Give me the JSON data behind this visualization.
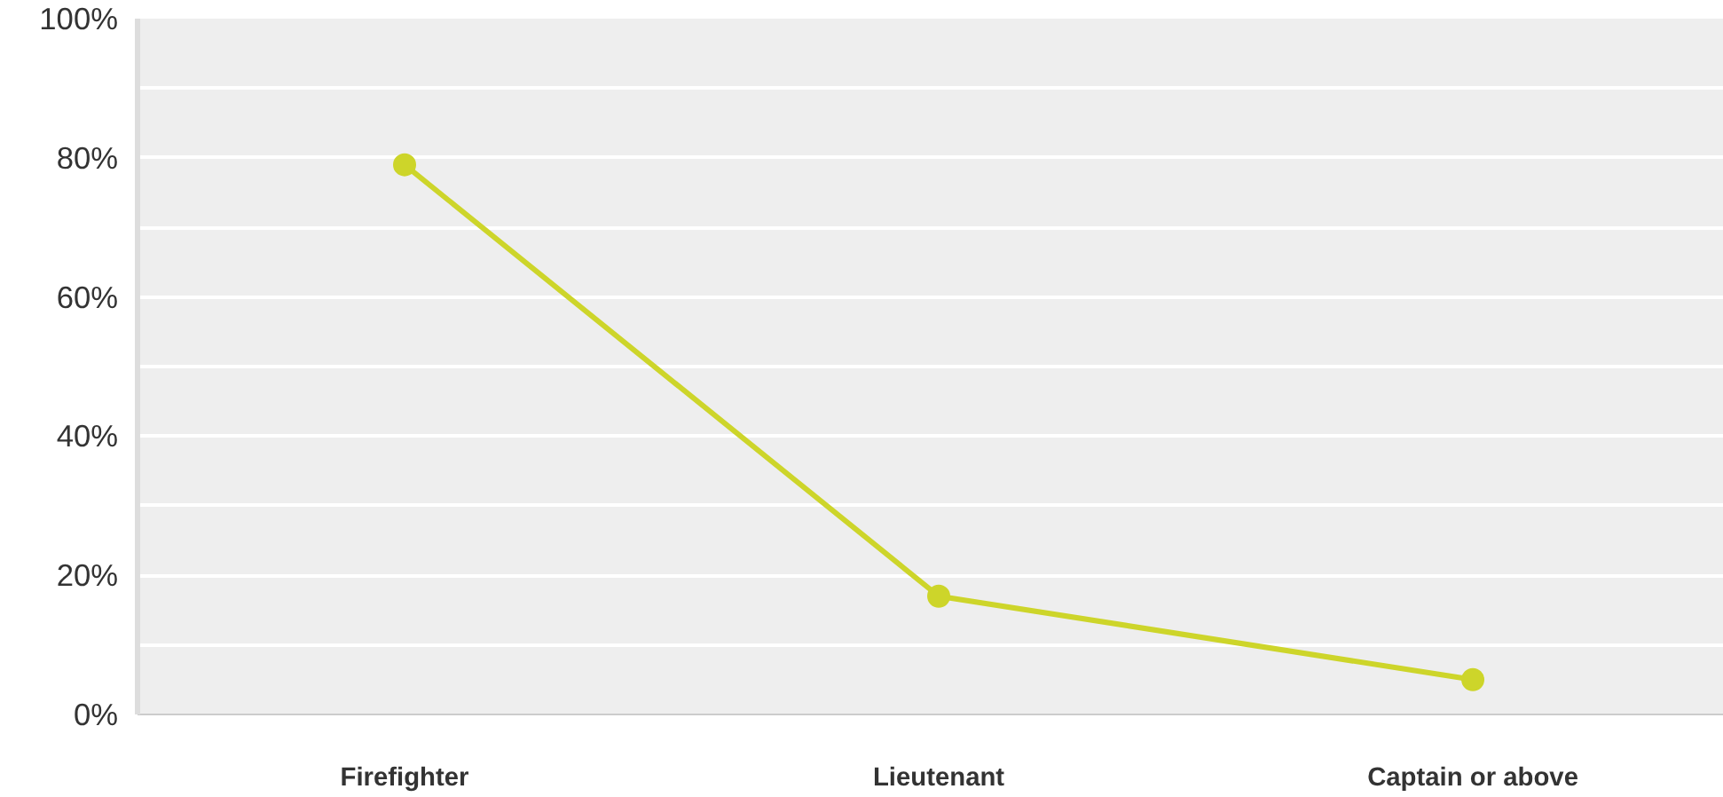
{
  "chart_data": {
    "type": "line",
    "categories": [
      "Firefighter",
      "Lieutenant",
      "Captain or above"
    ],
    "series": [
      {
        "color": "#cdd52a",
        "values": [
          79,
          17,
          5
        ]
      }
    ],
    "ylim": [
      0,
      100
    ],
    "yticks": [
      {
        "value": 0,
        "label": "0%"
      },
      {
        "value": 10,
        "label": null
      },
      {
        "value": 20,
        "label": "20%"
      },
      {
        "value": 30,
        "label": null
      },
      {
        "value": 40,
        "label": "40%"
      },
      {
        "value": 50,
        "label": null
      },
      {
        "value": 60,
        "label": "60%"
      },
      {
        "value": 70,
        "label": null
      },
      {
        "value": 80,
        "label": "80%"
      },
      {
        "value": 90,
        "label": null
      },
      {
        "value": 100,
        "label": "100%"
      }
    ],
    "grid": "y",
    "marker": "circle",
    "line_style": "solid"
  }
}
